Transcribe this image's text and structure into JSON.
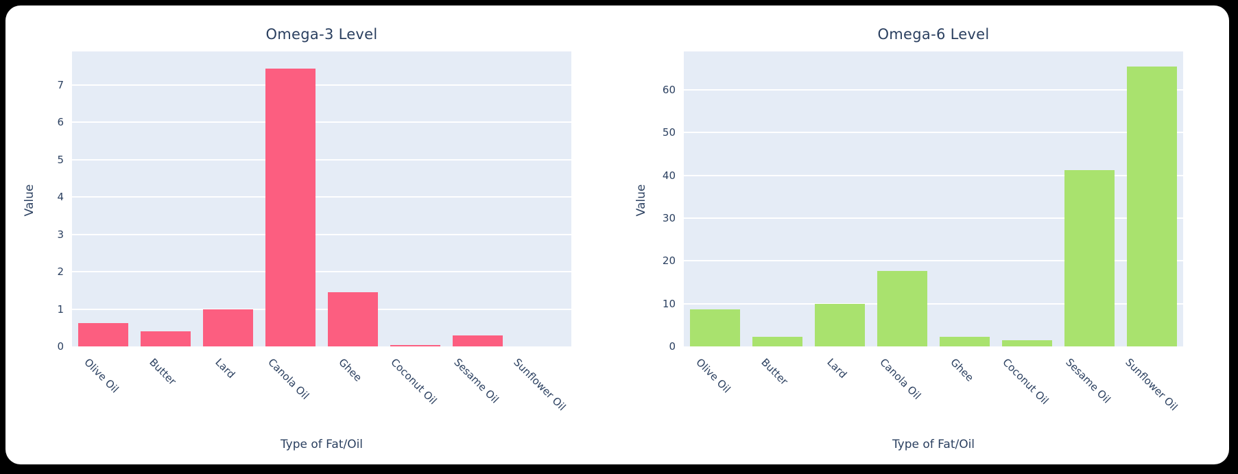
{
  "page": {
    "background_color": "#000000",
    "card_color": "#ffffff",
    "plot_background_color": "#e5ecf6",
    "grid_color": "#ffffff",
    "text_color": "#2a3f5f"
  },
  "chart_data": [
    {
      "type": "bar",
      "title": "Omega-3 Level",
      "xlabel": "Type of Fat/Oil",
      "ylabel": "Value",
      "bar_color": "#fc5e80",
      "categories": [
        "Olive Oil",
        "Butter",
        "Lard",
        "Canola Oil",
        "Ghee",
        "Coconut Oil",
        "Sesame Oil",
        "Sunflower Oil"
      ],
      "values": [
        0.62,
        0.4,
        1.0,
        7.45,
        1.45,
        0.03,
        0.3,
        0
      ],
      "yticks": [
        0,
        1,
        2,
        3,
        4,
        5,
        6,
        7
      ],
      "ylim": [
        0,
        7.9
      ],
      "grid": true,
      "legend": "none"
    },
    {
      "type": "bar",
      "title": "Omega-6 Level",
      "xlabel": "Type of Fat/Oil",
      "ylabel": "Value",
      "bar_color": "#a9e26e",
      "categories": [
        "Olive Oil",
        "Butter",
        "Lard",
        "Canola Oil",
        "Ghee",
        "Coconut Oil",
        "Sesame Oil",
        "Sunflower Oil"
      ],
      "values": [
        8.7,
        2.2,
        10.0,
        17.6,
        2.2,
        1.5,
        41.2,
        65.5
      ],
      "yticks": [
        0,
        10,
        20,
        30,
        40,
        50,
        60
      ],
      "ylim": [
        0,
        69
      ],
      "grid": true,
      "legend": "none"
    }
  ]
}
